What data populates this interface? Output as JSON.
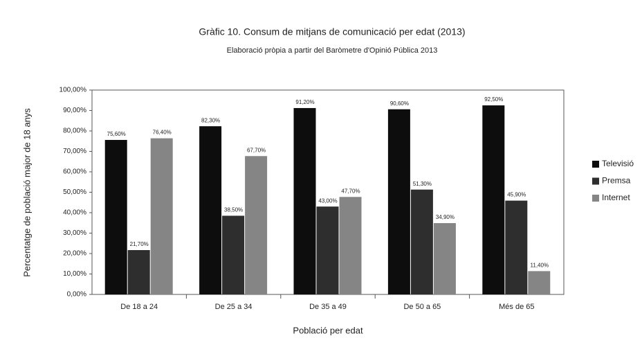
{
  "chart_data": {
    "type": "bar",
    "title": "Gràfic 10. Consum de mitjans de comunicació per edat (2013)",
    "subtitle": "Elaboració pròpia a partir del Baròmetre d'Opinió Pública 2013",
    "y_label": "Percentatge de població major de 18 anys",
    "x_label": "Població per edat",
    "categories": [
      "De 18 a 24",
      "De 25 a 34",
      "De 35 a 49",
      "De 50 a 65",
      "Més de 65"
    ],
    "series": [
      {
        "name": "Televisió",
        "color": "#0d0d0d",
        "values": [
          75.6,
          82.3,
          91.2,
          90.6,
          92.5
        ],
        "value_labels": [
          "75,60%",
          "82,30%",
          "91,20%",
          "90,60%",
          "92,50%"
        ]
      },
      {
        "name": "Premsa",
        "color": "#2e2e2e",
        "values": [
          21.7,
          38.5,
          43,
          51.3,
          45.9
        ],
        "value_labels": [
          "21,70%",
          "38,50%",
          "43,00%",
          "51,30%",
          "45,90%"
        ]
      },
      {
        "name": "Internet",
        "color": "#858585",
        "values": [
          76.4,
          67.7,
          47.7,
          34.9,
          11.4
        ],
        "value_labels": [
          "76,40%",
          "67,70%",
          "47,70%",
          "34,90%",
          "11,40%"
        ]
      }
    ],
    "ylim": [
      0,
      100
    ],
    "yticks": [
      {
        "value": 0,
        "label": "0,00%"
      },
      {
        "value": 10,
        "label": "10,00%"
      },
      {
        "value": 20,
        "label": "20,00%"
      },
      {
        "value": 30,
        "label": "30,00%"
      },
      {
        "value": 40,
        "label": "40,00%"
      },
      {
        "value": 50,
        "label": "50,00%"
      },
      {
        "value": 60,
        "label": "60,00%"
      },
      {
        "value": 70,
        "label": "70,00%"
      },
      {
        "value": 80,
        "label": "80,00%"
      },
      {
        "value": 90,
        "label": "90,00%"
      },
      {
        "value": 100,
        "label": "100,00%"
      }
    ],
    "legend": "right"
  }
}
